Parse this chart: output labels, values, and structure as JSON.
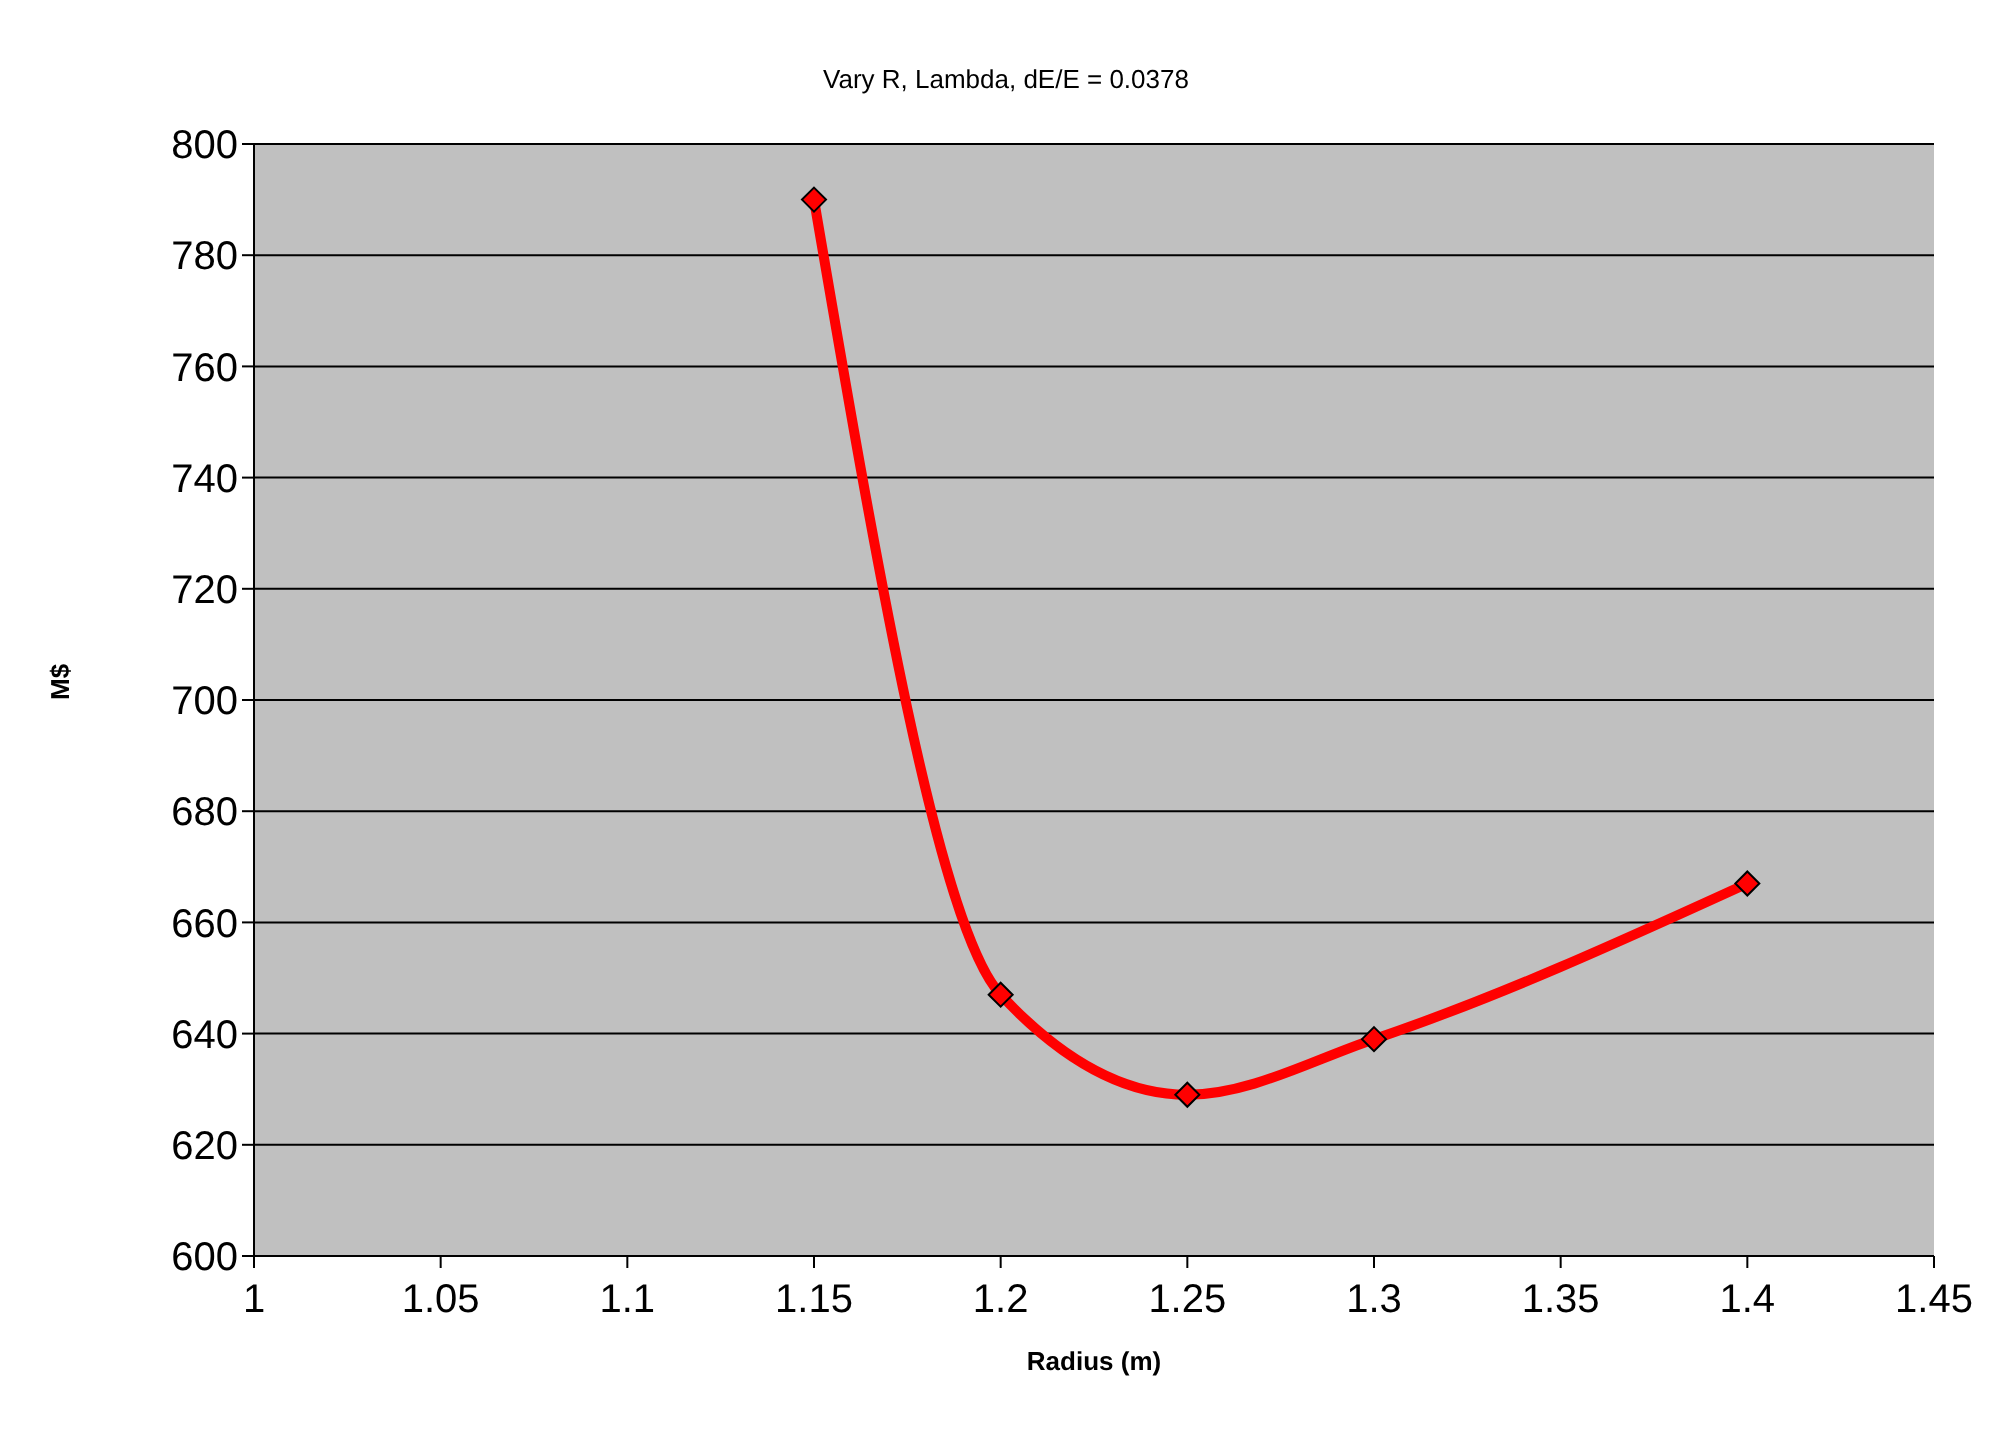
{
  "chart_data": {
    "type": "line",
    "title": "Vary R, Lambda, dE/E = 0.0378",
    "xlabel": "Radius (m)",
    "ylabel": "M$",
    "x": [
      1.15,
      1.2,
      1.25,
      1.3,
      1.4
    ],
    "series": [
      {
        "color": "#ff0000",
        "values": [
          790,
          647,
          629,
          639,
          667
        ]
      }
    ],
    "xlim": [
      1,
      1.45
    ],
    "xticks": [
      1,
      1.05,
      1.1,
      1.15,
      1.2,
      1.25,
      1.3,
      1.35,
      1.4,
      1.45
    ],
    "ylim": [
      600,
      800
    ],
    "yticks": [
      600,
      620,
      640,
      660,
      680,
      700,
      720,
      740,
      760,
      780,
      800
    ],
    "grid": "y",
    "marker": "diamond"
  }
}
